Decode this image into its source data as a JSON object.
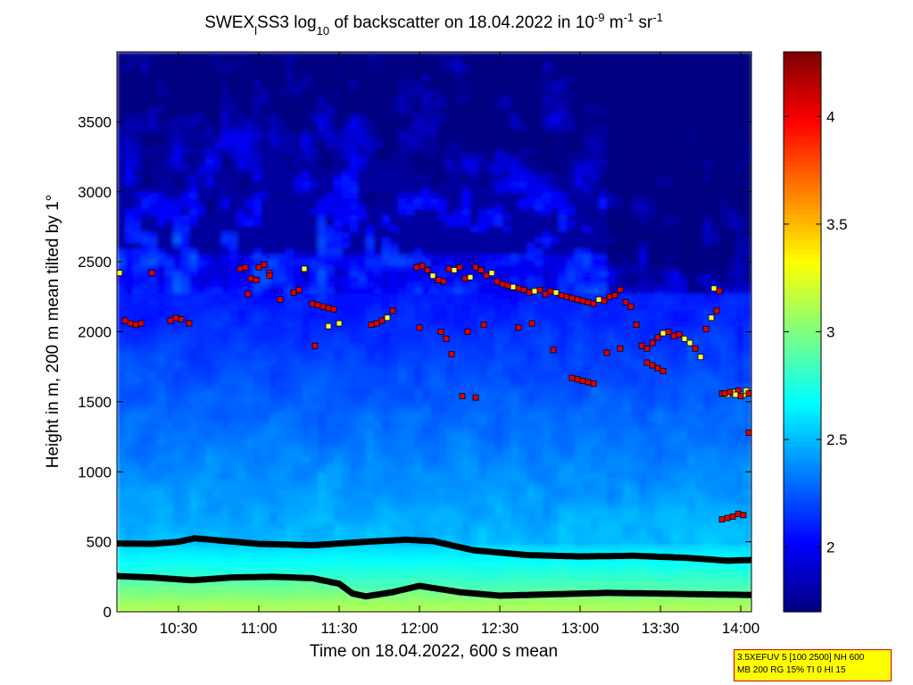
{
  "chart_data": {
    "type": "heatmap",
    "title": {
      "prefix": "SWEX",
      "sub1": "l",
      "mid1": "SS3 log",
      "sub2": "10",
      "mid2": " of backscatter on 18.04.2022 in 10",
      "sup1": "-9",
      "mid3": " m",
      "sup2": "-1",
      "mid4": " sr",
      "sup3": "-1"
    },
    "xlabel": "Time on 18.04.2022, 600 s mean",
    "ylabel": "Height in m, 200 m mean tilted by 1°",
    "x_ticks": [
      "10:30",
      "11:00",
      "11:30",
      "12:00",
      "12:30",
      "13:00",
      "13:30",
      "14:00"
    ],
    "x_tick_minutes": [
      630,
      660,
      690,
      720,
      750,
      780,
      810,
      840
    ],
    "xlim_minutes": [
      607,
      844
    ],
    "y_ticks": [
      0,
      500,
      1000,
      1500,
      2000,
      2500,
      3000,
      3500
    ],
    "ylim": [
      0,
      4000
    ],
    "colorbar": {
      "ticks": [
        2,
        2.5,
        3,
        3.5,
        4
      ],
      "tick_labels": [
        "2",
        "2.5",
        "3",
        "3.5",
        "4"
      ],
      "range": [
        1.7,
        4.3
      ],
      "colormap": "jet"
    },
    "layers": {
      "upper_boundary": {
        "t": [
          607,
          620,
          630,
          636,
          645,
          660,
          680,
          700,
          715,
          725,
          740,
          760,
          780,
          800,
          820,
          835,
          844
        ],
        "h": [
          488,
          485,
          500,
          525,
          510,
          485,
          475,
          500,
          515,
          505,
          440,
          405,
          395,
          400,
          385,
          365,
          370
        ]
      },
      "lower_boundary": {
        "t": [
          607,
          620,
          635,
          650,
          665,
          680,
          690,
          695,
          700,
          710,
          720,
          735,
          750,
          770,
          790,
          810,
          825,
          844
        ],
        "h": [
          255,
          245,
          225,
          245,
          250,
          240,
          200,
          130,
          110,
          140,
          185,
          140,
          115,
          125,
          135,
          130,
          125,
          120
        ]
      }
    },
    "cloud_points": {
      "t": [
        608,
        610,
        612,
        614,
        616,
        627,
        629,
        631,
        634,
        653,
        655,
        657,
        659,
        662,
        664,
        673,
        675,
        677,
        680,
        682,
        684,
        686,
        688,
        690,
        702,
        704,
        706,
        708,
        710,
        719,
        721,
        723,
        725,
        727,
        729,
        731,
        733,
        735,
        737,
        739,
        741,
        743,
        745,
        747,
        749,
        751,
        753,
        755,
        757,
        759,
        761,
        763,
        765,
        767,
        769,
        771,
        773,
        775,
        777,
        779,
        781,
        783,
        785,
        787,
        789,
        791,
        793,
        795,
        797,
        799,
        801,
        803,
        805,
        807,
        809,
        811,
        813,
        815,
        817,
        819,
        821,
        823,
        825,
        827,
        829,
        831,
        833,
        835,
        837,
        839,
        841,
        843,
        728,
        730,
        732,
        736,
        741,
        744,
        757,
        762,
        770,
        777,
        779,
        781,
        783,
        785,
        790,
        795,
        805,
        807,
        809,
        811,
        833,
        835,
        837,
        839,
        841,
        834,
        836,
        838,
        840,
        842,
        843,
        660,
        664,
        620,
        656,
        668,
        681,
        686,
        720,
        738,
        830,
        832
      ],
      "h": [
        2420,
        2080,
        2060,
        2050,
        2060,
        2080,
        2100,
        2090,
        2060,
        2450,
        2460,
        2380,
        2370,
        2480,
        2420,
        2280,
        2300,
        2450,
        2200,
        2190,
        2180,
        2170,
        2160,
        2060,
        2050,
        2060,
        2080,
        2100,
        2150,
        2460,
        2470,
        2440,
        2400,
        2370,
        2360,
        2450,
        2440,
        2460,
        2380,
        2390,
        2460,
        2440,
        2400,
        2420,
        2360,
        2340,
        2330,
        2320,
        2310,
        2300,
        2280,
        2290,
        2300,
        2270,
        2290,
        2280,
        2260,
        2250,
        2240,
        2230,
        2220,
        2210,
        2200,
        2230,
        2220,
        2250,
        2260,
        2300,
        2210,
        2180,
        2050,
        1900,
        1880,
        1920,
        1960,
        1990,
        2000,
        1970,
        1980,
        1950,
        1920,
        1880,
        1820,
        2020,
        2100,
        2150,
        1560,
        1550,
        1570,
        1580,
        1550,
        1280,
        2000,
        1950,
        1840,
        1540,
        1530,
        2050,
        2030,
        2060,
        1870,
        1670,
        1660,
        1650,
        1640,
        1630,
        1850,
        1880,
        1780,
        1760,
        1740,
        1720,
        660,
        670,
        680,
        700,
        690,
        1560,
        1570,
        1550,
        1540,
        1580,
        1560,
        2460,
        2400,
        2420,
        2270,
        2230,
        1900,
        2040,
        2030,
        2000,
        2310,
        2290
      ],
      "c": [
        3.2,
        4,
        4,
        4,
        4,
        4,
        4,
        4,
        4,
        4,
        4,
        4,
        4,
        4,
        4,
        4,
        4,
        3.3,
        4,
        4,
        4,
        4,
        4,
        3.2,
        4,
        4,
        4,
        3.2,
        4,
        4,
        4,
        4,
        3.2,
        4,
        4,
        4,
        3.2,
        4,
        4,
        3.2,
        4,
        4,
        4,
        3.2,
        4,
        4,
        4,
        3.2,
        4,
        4,
        4,
        3.2,
        4,
        4,
        4,
        3.2,
        4,
        4,
        4,
        4,
        4,
        4,
        4,
        3.2,
        4,
        4,
        4,
        4,
        4,
        4,
        4,
        4,
        4,
        4,
        4,
        3.2,
        4,
        4,
        4,
        3.2,
        3.2,
        4,
        3.2,
        4,
        3.2,
        4,
        4,
        3.2,
        3.2,
        4,
        3.2,
        4,
        4,
        4,
        4,
        4,
        4,
        4,
        4,
        4,
        4,
        4,
        4,
        4,
        4,
        4,
        4,
        4,
        4,
        4,
        4,
        4,
        4,
        4,
        4,
        4,
        4,
        4,
        4,
        3.2,
        4,
        3.2,
        4,
        4,
        4,
        4,
        4,
        4,
        4,
        3.2,
        4,
        4,
        3.2,
        4
      ]
    }
  },
  "params_box": {
    "line1": "3.5XEFUV 5 [100 2500] NH 600",
    "line2": "MB 200 RG 15% TI 0 HI 15"
  }
}
